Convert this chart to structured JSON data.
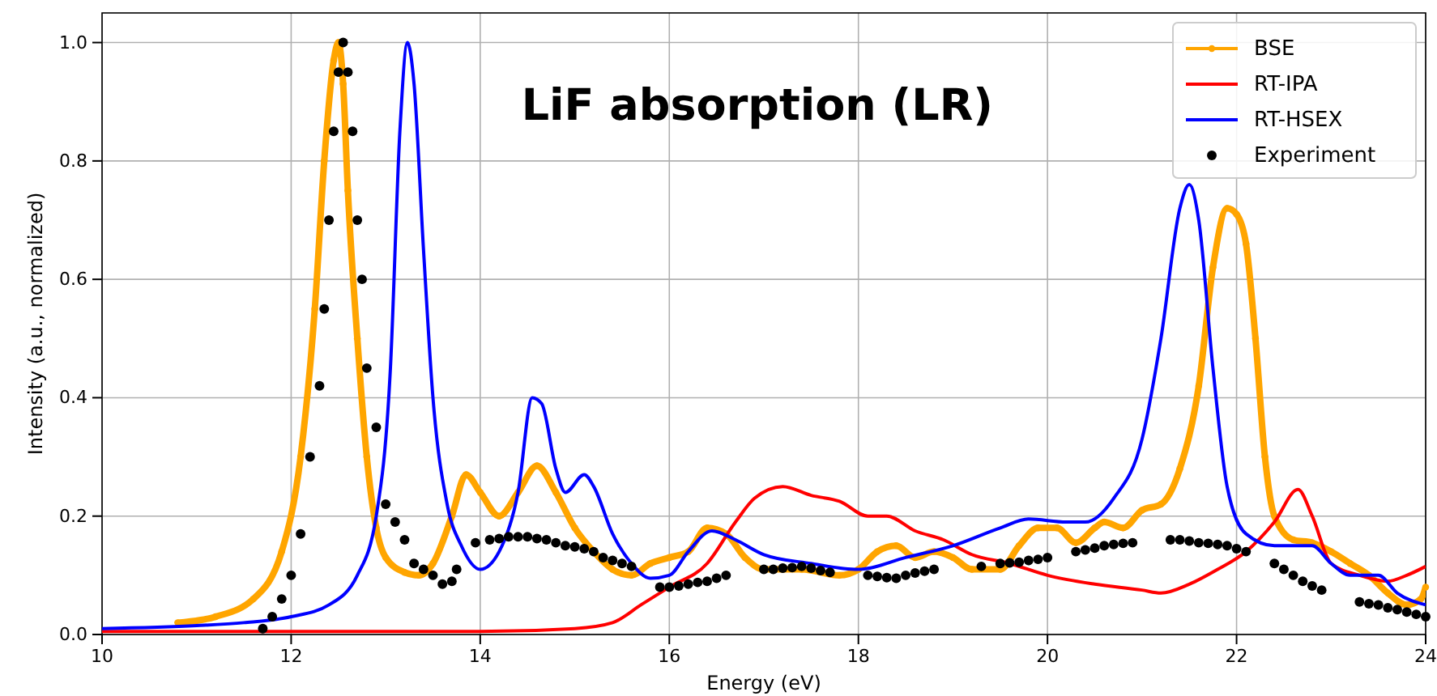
{
  "chart_data": {
    "type": "line",
    "title": "LiF absorption (LR)",
    "xlabel": "Energy (eV)",
    "ylabel": "Intensity (a.u., normalized)",
    "xlim": [
      10,
      24
    ],
    "ylim": [
      0,
      1.05
    ],
    "xticks": [
      10,
      12,
      14,
      16,
      18,
      20,
      22,
      24
    ],
    "yticks": [
      {
        "value": 0,
        "label": "0.0"
      },
      {
        "value": 0.2,
        "label": "0.2"
      },
      {
        "value": 0.4,
        "label": "0.4"
      },
      {
        "value": 0.6,
        "label": "0.6"
      },
      {
        "value": 0.8,
        "label": "0.8"
      },
      {
        "value": 1,
        "label": "1.0"
      }
    ],
    "grid": true,
    "legend": "top right",
    "line_style": "solid",
    "series": [
      {
        "name": "BSE",
        "color": "#ffa500",
        "marker": "circle",
        "x": [
          10.8,
          11.2,
          11.6,
          11.9,
          12.1,
          12.25,
          12.35,
          12.45,
          12.5,
          12.55,
          12.6,
          12.7,
          12.8,
          12.9,
          13.0,
          13.2,
          13.35,
          13.5,
          13.7,
          13.85,
          14.0,
          14.2,
          14.4,
          14.6,
          14.8,
          15.0,
          15.2,
          15.4,
          15.6,
          15.8,
          16.0,
          16.2,
          16.4,
          16.6,
          16.8,
          17.0,
          17.4,
          17.8,
          18.0,
          18.2,
          18.4,
          18.6,
          18.8,
          19.0,
          19.2,
          19.5,
          19.7,
          19.9,
          20.1,
          20.3,
          20.5,
          20.6,
          20.8,
          21.0,
          21.2,
          21.4,
          21.6,
          21.75,
          21.9,
          22.0,
          22.1,
          22.2,
          22.3,
          22.4,
          22.6,
          22.8,
          23.0,
          23.2,
          23.4,
          23.6,
          23.8,
          23.95,
          24.0
        ],
        "values": [
          0.02,
          0.03,
          0.06,
          0.14,
          0.3,
          0.55,
          0.8,
          0.97,
          1.0,
          0.93,
          0.75,
          0.5,
          0.3,
          0.18,
          0.13,
          0.105,
          0.1,
          0.12,
          0.2,
          0.27,
          0.24,
          0.2,
          0.24,
          0.285,
          0.24,
          0.18,
          0.14,
          0.11,
          0.1,
          0.12,
          0.13,
          0.14,
          0.18,
          0.17,
          0.13,
          0.11,
          0.11,
          0.1,
          0.11,
          0.14,
          0.15,
          0.13,
          0.14,
          0.13,
          0.11,
          0.11,
          0.15,
          0.18,
          0.18,
          0.155,
          0.18,
          0.19,
          0.18,
          0.21,
          0.22,
          0.28,
          0.42,
          0.62,
          0.72,
          0.71,
          0.66,
          0.5,
          0.3,
          0.2,
          0.16,
          0.155,
          0.14,
          0.12,
          0.1,
          0.07,
          0.05,
          0.06,
          0.08
        ]
      },
      {
        "name": "RT-IPA",
        "color": "#ff0000",
        "marker": "none",
        "x": [
          10,
          14,
          15,
          15.4,
          15.7,
          16.0,
          16.4,
          16.7,
          16.9,
          17.2,
          17.5,
          17.8,
          18.1,
          18.3,
          18.6,
          18.9,
          19.2,
          19.6,
          20.0,
          20.5,
          21.0,
          21.2,
          21.5,
          21.8,
          22.1,
          22.4,
          22.65,
          22.8,
          23.0,
          23.3,
          23.6,
          23.8,
          24.0
        ],
        "values": [
          0.005,
          0.005,
          0.01,
          0.02,
          0.05,
          0.08,
          0.12,
          0.19,
          0.23,
          0.25,
          0.235,
          0.225,
          0.2,
          0.2,
          0.175,
          0.16,
          0.135,
          0.12,
          0.1,
          0.085,
          0.075,
          0.07,
          0.085,
          0.11,
          0.14,
          0.19,
          0.245,
          0.2,
          0.12,
          0.1,
          0.09,
          0.1,
          0.115
        ]
      },
      {
        "name": "RT-HSEX",
        "color": "#0000ff",
        "marker": "none",
        "x": [
          10,
          11,
          11.5,
          12,
          12.4,
          12.7,
          12.9,
          13.05,
          13.15,
          13.23,
          13.3,
          13.4,
          13.5,
          13.65,
          13.8,
          14.0,
          14.2,
          14.4,
          14.55,
          14.65,
          14.8,
          14.9,
          15.1,
          15.2,
          15.4,
          15.6,
          15.8,
          16.0,
          16.2,
          16.45,
          16.7,
          17.0,
          17.5,
          18.0,
          18.5,
          19.0,
          19.5,
          19.8,
          20.2,
          20.4,
          20.7,
          21.0,
          21.2,
          21.4,
          21.5,
          21.6,
          21.75,
          21.9,
          22.1,
          22.4,
          22.8,
          23.0,
          23.2,
          23.5,
          23.7,
          24.0
        ],
        "values": [
          0.01,
          0.015,
          0.02,
          0.03,
          0.05,
          0.1,
          0.2,
          0.45,
          0.85,
          1.0,
          0.93,
          0.65,
          0.4,
          0.22,
          0.15,
          0.11,
          0.14,
          0.24,
          0.4,
          0.39,
          0.28,
          0.24,
          0.27,
          0.25,
          0.17,
          0.12,
          0.095,
          0.1,
          0.14,
          0.175,
          0.16,
          0.135,
          0.12,
          0.11,
          0.13,
          0.15,
          0.18,
          0.195,
          0.19,
          0.19,
          0.23,
          0.33,
          0.5,
          0.72,
          0.76,
          0.7,
          0.45,
          0.25,
          0.17,
          0.15,
          0.15,
          0.12,
          0.1,
          0.1,
          0.07,
          0.05
        ]
      },
      {
        "name": "Experiment",
        "type": "scatter",
        "color": "#000000",
        "marker": "circle",
        "x": [
          11.7,
          11.8,
          11.9,
          12.0,
          12.1,
          12.2,
          12.3,
          12.35,
          12.4,
          12.45,
          12.5,
          12.55,
          12.6,
          12.65,
          12.7,
          12.75,
          12.8,
          12.9,
          13.0,
          13.1,
          13.2,
          13.3,
          13.4,
          13.5,
          13.6,
          13.7,
          13.75,
          13.95,
          14.1,
          14.2,
          14.3,
          14.4,
          14.5,
          14.6,
          14.7,
          14.8,
          14.9,
          15.0,
          15.1,
          15.2,
          15.3,
          15.4,
          15.5,
          15.6,
          15.9,
          16.0,
          16.1,
          16.2,
          16.3,
          16.4,
          16.5,
          16.6,
          17.0,
          17.1,
          17.2,
          17.3,
          17.4,
          17.5,
          17.6,
          17.7,
          18.1,
          18.2,
          18.3,
          18.4,
          18.5,
          18.6,
          18.7,
          18.8,
          19.3,
          19.5,
          19.6,
          19.7,
          19.8,
          19.9,
          20.0,
          20.3,
          20.4,
          20.5,
          20.6,
          20.7,
          20.8,
          20.9,
          21.3,
          21.4,
          21.5,
          21.6,
          21.7,
          21.8,
          21.9,
          22.0,
          22.1,
          22.4,
          22.5,
          22.6,
          22.7,
          22.8,
          22.9,
          23.3,
          23.4,
          23.5,
          23.6,
          23.7,
          23.8,
          23.9,
          24.0
        ],
        "values": [
          0.01,
          0.03,
          0.06,
          0.1,
          0.17,
          0.3,
          0.42,
          0.55,
          0.7,
          0.85,
          0.95,
          1.0,
          0.95,
          0.85,
          0.7,
          0.6,
          0.45,
          0.35,
          0.22,
          0.19,
          0.16,
          0.12,
          0.11,
          0.1,
          0.085,
          0.09,
          0.11,
          0.155,
          0.16,
          0.162,
          0.165,
          0.165,
          0.165,
          0.162,
          0.16,
          0.155,
          0.15,
          0.148,
          0.145,
          0.14,
          0.13,
          0.125,
          0.12,
          0.115,
          0.08,
          0.08,
          0.082,
          0.085,
          0.088,
          0.09,
          0.095,
          0.1,
          0.11,
          0.11,
          0.112,
          0.113,
          0.115,
          0.112,
          0.108,
          0.105,
          0.1,
          0.098,
          0.096,
          0.095,
          0.1,
          0.104,
          0.107,
          0.11,
          0.115,
          0.12,
          0.121,
          0.122,
          0.125,
          0.127,
          0.13,
          0.14,
          0.143,
          0.146,
          0.15,
          0.152,
          0.154,
          0.155,
          0.16,
          0.16,
          0.158,
          0.155,
          0.154,
          0.152,
          0.15,
          0.145,
          0.14,
          0.12,
          0.11,
          0.1,
          0.09,
          0.082,
          0.075,
          0.055,
          0.052,
          0.05,
          0.045,
          0.042,
          0.038,
          0.034,
          0.03
        ]
      }
    ]
  }
}
